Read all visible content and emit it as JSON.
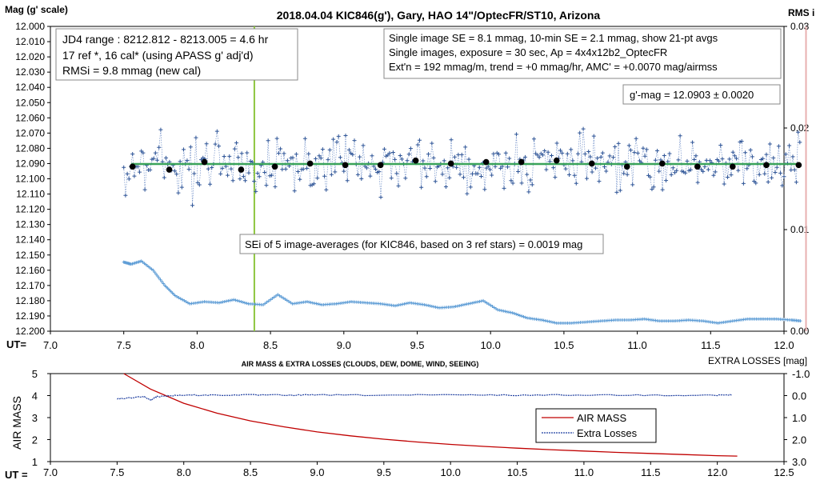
{
  "chart_data": [
    {
      "type": "scatter",
      "title": "2018.04.04  KIC846(g'),  Gary,  HAO  14\"/OptecFR/ST10,  Arizona",
      "ylabel": "Mag (g' scale)",
      "y2label": "RMS i",
      "xlabel": "UT=",
      "xlim": [
        7.0,
        12.0
      ],
      "ylim": [
        12.0,
        12.2
      ],
      "y_inverted": true,
      "y2lim": [
        0.0,
        0.03
      ],
      "x_ticks": [
        "7.0",
        "7.5",
        "8.0",
        "8.5",
        "9.0",
        "9.5",
        "10.0",
        "10.5",
        "11.0",
        "11.5",
        "12.0"
      ],
      "y_ticks": [
        "12.000",
        "12.010",
        "12.020",
        "12.030",
        "12.040",
        "12.050",
        "12.060",
        "12.070",
        "12.080",
        "12.090",
        "12.100",
        "12.110",
        "12.120",
        "12.130",
        "12.140",
        "12.150",
        "12.160",
        "12.170",
        "12.180",
        "12.190",
        "12.200"
      ],
      "y2_ticks": [
        "0.03",
        "0.02",
        "0.01",
        "0.00"
      ],
      "grid": false,
      "fit_level": 12.0903,
      "fit_range": [
        7.55,
        12.1
      ],
      "vertical_lines": [
        {
          "x": 8.39,
          "color": "#8dc63f"
        },
        {
          "x": 12.15,
          "color": "#e8b0b0"
        }
      ],
      "annotations": {
        "left_box": [
          "JD4 range : 8212.812 - 8213.005 = 4.6  hr",
          "17 ref *, 16 cal* (using APASS g' adj'd)",
          "RMSi = 9.8 mmag (new cal)"
        ],
        "right_box": [
          "Single image SE = 8.1 mmag, 10-min SE = 2.1 mmag, show  21-pt avgs",
          "Single images, exposure = 30 sec, Ap = 4x4x12b2_OptecFR",
          "Ext'n = 192 mmag/m, trend =  +0 mmag/hr, AMC' = +0.0070 mag/airmss"
        ],
        "gmag_box": "g'-mag = 12.0903 ± 0.0020",
        "sei_box": "SEi of 5 image-averages (for KIC846, based on 3 ref stars) = 0.0019  mag"
      },
      "series": [
        {
          "kind": "single_images",
          "color": "#2f5597",
          "noise_amplitude_mag": 0.0081
        },
        {
          "kind": "averages",
          "color": "#000000",
          "x": [
            7.56,
            7.81,
            8.05,
            8.3,
            8.53,
            8.77,
            9.01,
            9.25,
            9.49,
            9.73,
            9.97,
            10.21,
            10.45,
            10.69,
            10.93,
            11.17,
            11.41,
            11.65,
            11.88,
            12.1
          ],
          "y": [
            12.092,
            12.094,
            12.089,
            12.094,
            12.092,
            12.09,
            12.091,
            12.091,
            12.088,
            12.09,
            12.089,
            12.089,
            12.088,
            12.09,
            12.092,
            12.09,
            12.092,
            12.092,
            12.091,
            12.091
          ]
        },
        {
          "kind": "rms",
          "color": "#5b9bd5",
          "axis": "y2",
          "x": [
            7.5,
            7.55,
            7.62,
            7.7,
            7.78,
            7.85,
            7.95,
            8.05,
            8.15,
            8.25,
            8.35,
            8.45,
            8.55,
            8.65,
            8.75,
            8.85,
            8.95,
            9.05,
            9.15,
            9.25,
            9.35,
            9.45,
            9.55,
            9.65,
            9.75,
            9.85,
            9.95,
            10.05,
            10.15,
            10.25,
            10.35,
            10.45,
            10.55,
            10.65,
            10.75,
            10.85,
            10.95,
            11.05,
            11.15,
            11.25,
            11.35,
            11.45,
            11.55,
            11.65,
            11.75,
            11.85,
            11.95,
            12.05,
            12.12
          ],
          "y": [
            0.0068,
            0.0066,
            0.0069,
            0.006,
            0.0045,
            0.0035,
            0.0027,
            0.0029,
            0.0028,
            0.0031,
            0.0027,
            0.0026,
            0.0036,
            0.0027,
            0.0029,
            0.0026,
            0.0027,
            0.0029,
            0.0028,
            0.0027,
            0.0025,
            0.0028,
            0.0026,
            0.0023,
            0.0024,
            0.0027,
            0.003,
            0.0021,
            0.0018,
            0.0013,
            0.0011,
            0.0008,
            0.0008,
            0.0009,
            0.001,
            0.0011,
            0.0011,
            0.0012,
            0.001,
            0.001,
            0.0011,
            0.001,
            0.0008,
            0.001,
            0.0012,
            0.0012,
            0.0012,
            0.0011,
            0.001
          ]
        }
      ]
    },
    {
      "type": "line",
      "title": "AIR MASS & EXTRA LOSSES (CLOUDS, DEW, DOME, WIND, SEEING)",
      "ylabel": "AIR MASS",
      "y2label": "EXTRA LOSSES [mag]",
      "xlabel": "UT =",
      "xlim": [
        7.0,
        12.5
      ],
      "ylim": [
        1,
        5
      ],
      "y2lim": [
        -1.0,
        3.0
      ],
      "y2_inverted": true,
      "x_ticks": [
        "7.0",
        "7.5",
        "8.0",
        "8.5",
        "9.0",
        "9.5",
        "10.0",
        "10.5",
        "11.0",
        "11.5",
        "12.0",
        "12.5"
      ],
      "y_ticks": [
        "5",
        "4",
        "3",
        "2",
        "1"
      ],
      "y2_ticks": [
        "-1.0",
        "0.0",
        "1.0",
        "2.0",
        "3.0"
      ],
      "legend": [
        "AIR MASS",
        "Extra Losses"
      ],
      "legend_position": "lower-right",
      "series": [
        {
          "name": "AIR MASS",
          "color": "#c00000",
          "x": [
            7.55,
            7.75,
            8.0,
            8.25,
            8.5,
            8.75,
            9.0,
            9.25,
            9.5,
            9.75,
            10.0,
            10.25,
            10.5,
            10.75,
            11.0,
            11.25,
            11.5,
            11.75,
            12.0,
            12.15
          ],
          "y": [
            5.0,
            4.3,
            3.65,
            3.2,
            2.85,
            2.58,
            2.35,
            2.17,
            2.02,
            1.89,
            1.78,
            1.69,
            1.61,
            1.54,
            1.48,
            1.42,
            1.37,
            1.32,
            1.27,
            1.25
          ]
        },
        {
          "name": "Extra Losses",
          "color": "#1f3fa0",
          "x": [
            7.5,
            7.6,
            7.7,
            7.75,
            7.8,
            7.9,
            8.0,
            8.2,
            8.5,
            8.8,
            9.0,
            9.5,
            10.0,
            10.5,
            11.0,
            11.5,
            12.0,
            12.12
          ],
          "y": [
            0.15,
            0.1,
            0.05,
            0.2,
            0.05,
            0.0,
            -0.02,
            -0.02,
            -0.03,
            -0.02,
            -0.03,
            -0.02,
            -0.03,
            -0.02,
            -0.03,
            -0.02,
            -0.02,
            -0.03
          ]
        }
      ]
    }
  ]
}
